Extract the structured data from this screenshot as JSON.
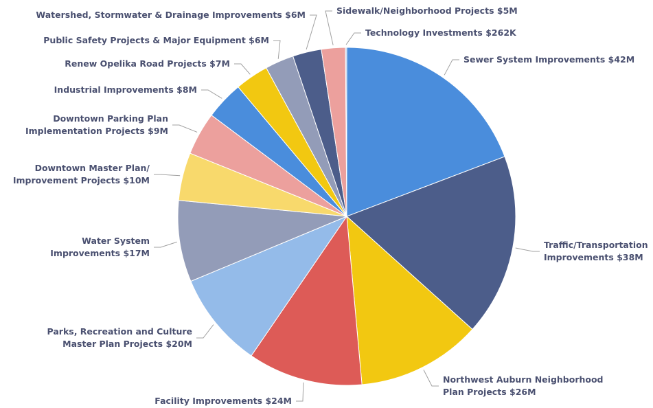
{
  "chart_data": {
    "type": "pie",
    "categories": [
      "Sewer System Improvements",
      "Traffic/Transportation\nImprovements",
      "Northwest Auburn Neighborhood\nPlan Projects",
      "Facility Improvements",
      "Parks, Recreation and Culture\nMaster Plan Projects",
      "Water System\nImprovements",
      "Downtown Master Plan/\nImprovement Projects",
      "Downtown Parking Plan\nImplementation Projects",
      "Industrial Improvements",
      "Renew Opelika Road Projects",
      "Public Safety Projects & Major Equipment",
      "Watershed, Stormwater & Drainage Improvements",
      "Sidewalk/Neighborhood Projects",
      "Technology Investments"
    ],
    "values": [
      42,
      38,
      26,
      24,
      20,
      17,
      10,
      9,
      8,
      7,
      6,
      6,
      5,
      0.262
    ],
    "value_labels": [
      "$42M",
      "$38M",
      "$26M",
      "$24M",
      "$20M",
      "$17M",
      "$10M",
      "$9M",
      "$8M",
      "$7M",
      "$6M",
      "$6M",
      "$5M",
      "$262K"
    ],
    "colors": [
      "#4a8ddc",
      "#4c5d8a",
      "#f2c811",
      "#dd5b57",
      "#94bbe9",
      "#939cb8",
      "#f8d96c",
      "#eca09d",
      "#4a8ddc",
      "#f2c811",
      "#939cb8",
      "#4c5d8a",
      "#eca09d",
      "#a5c3e8"
    ]
  }
}
